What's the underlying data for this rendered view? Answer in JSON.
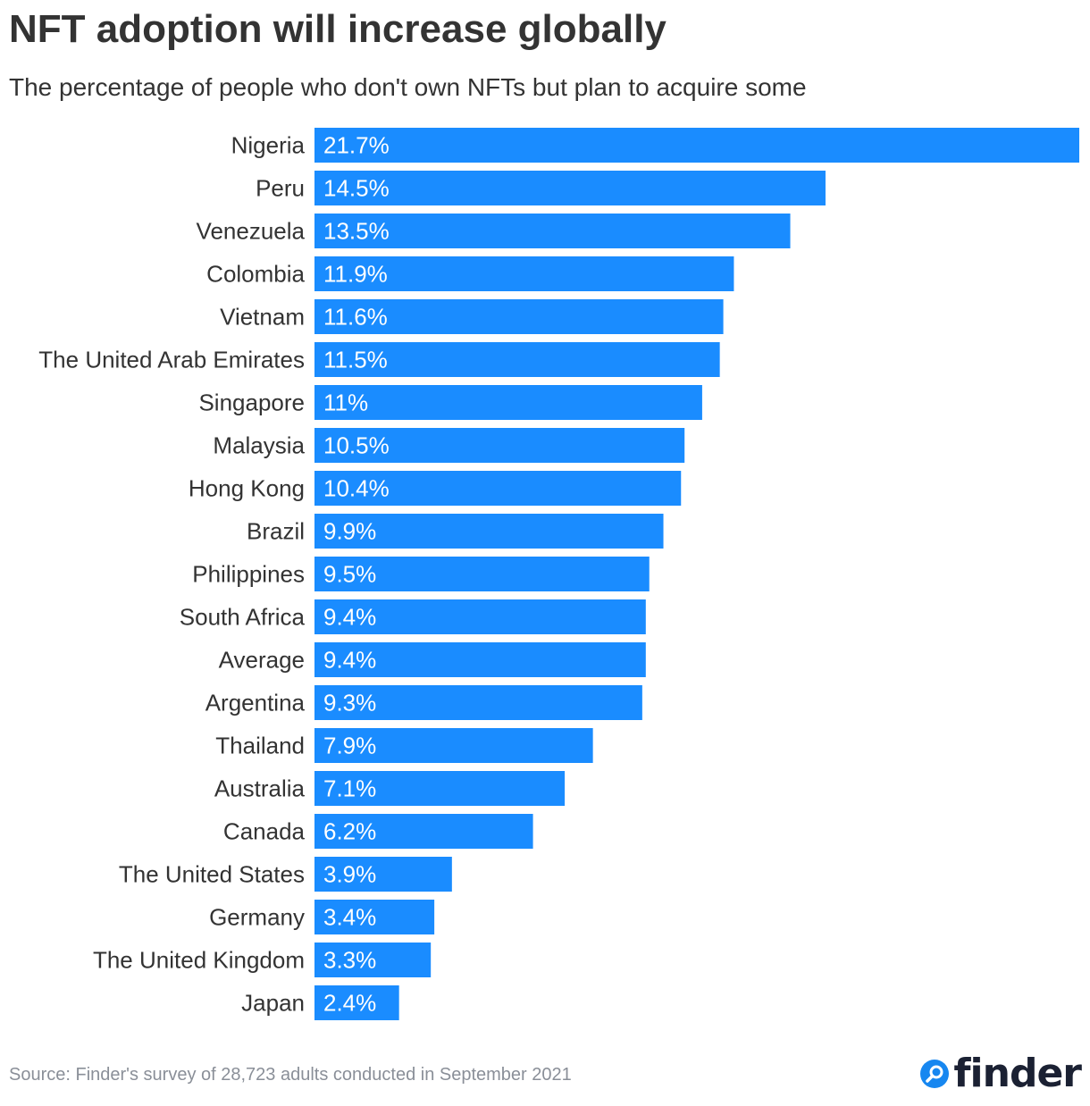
{
  "title": "NFT adoption will increase globally",
  "subtitle": "The percentage of people who don't own NFTs but plan to acquire some",
  "source": "Source: Finder's survey of 28,723 adults conducted in September 2021",
  "logo": {
    "text": "finder",
    "icon": "magnifier-icon",
    "icon_color": "#1787f0",
    "text_color": "#1b2133"
  },
  "colors": {
    "bar": "#1a8cff",
    "bar_label": "#ffffff",
    "category_label": "#333333"
  },
  "chart_data": {
    "type": "bar",
    "orientation": "horizontal",
    "title": "NFT adoption will increase globally",
    "subtitle": "The percentage of people who don't own NFTs but plan to acquire some",
    "xlabel": "",
    "ylabel": "",
    "xlim": [
      0,
      21.7
    ],
    "grid": false,
    "legend": "none",
    "categories": [
      "Nigeria",
      "Peru",
      "Venezuela",
      "Colombia",
      "Vietnam",
      "The United Arab Emirates",
      "Singapore",
      "Malaysia",
      "Hong Kong",
      "Brazil",
      "Philippines",
      "South Africa",
      "Average",
      "Argentina",
      "Thailand",
      "Australia",
      "Canada",
      "The United States",
      "Germany",
      "The United Kingdom",
      "Japan"
    ],
    "values": [
      21.7,
      14.5,
      13.5,
      11.9,
      11.6,
      11.5,
      11,
      10.5,
      10.4,
      9.9,
      9.5,
      9.4,
      9.4,
      9.3,
      7.9,
      7.1,
      6.2,
      3.9,
      3.4,
      3.3,
      2.4
    ],
    "data_labels": [
      "21.7%",
      "14.5%",
      "13.5%",
      "11.9%",
      "11.6%",
      "11.5%",
      "11%",
      "10.5%",
      "10.4%",
      "9.9%",
      "9.5%",
      "9.4%",
      "9.4%",
      "9.3%",
      "7.9%",
      "7.1%",
      "6.2%",
      "3.9%",
      "3.4%",
      "3.3%",
      "2.4%"
    ]
  }
}
